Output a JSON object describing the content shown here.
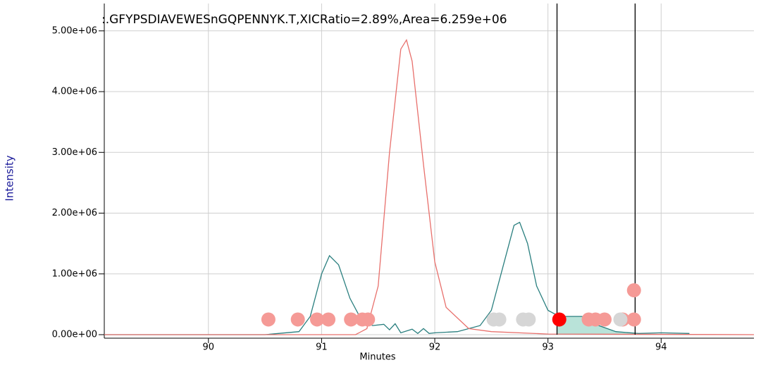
{
  "chart_data": {
    "type": "line",
    "title": ":.GFYPSDIAVEWESnGQPENNYK.T,XICRatio=2.89%,Area=6.259e+06",
    "x_label": "Minutes",
    "y_label": "Intensity",
    "xlim": [
      89.08,
      94.82
    ],
    "ylim": [
      0,
      5450000
    ],
    "xticks": [
      90,
      91,
      92,
      93,
      94
    ],
    "yticks": [
      {
        "value": 0,
        "label": "0.00e+00"
      },
      {
        "value": 1000000,
        "label": "1.00e+06"
      },
      {
        "value": 2000000,
        "label": "2.00e+06"
      },
      {
        "value": 3000000,
        "label": "3.00e+06"
      },
      {
        "value": 4000000,
        "label": "4.00e+06"
      },
      {
        "value": 5000000,
        "label": "5.00e+06"
      }
    ],
    "grid": true,
    "boundaries": [
      93.08,
      93.77
    ],
    "shade_color": "#b9e3d9",
    "series": [
      {
        "color": "#2a7f7f",
        "x": [
          89.08,
          90.5,
          90.8,
          90.9,
          91.0,
          91.07,
          91.15,
          91.25,
          91.35,
          91.45,
          91.55,
          91.6,
          91.65,
          91.7,
          91.8,
          91.85,
          91.9,
          91.95,
          92.0,
          92.2,
          92.4,
          92.5,
          92.6,
          92.7,
          92.75,
          92.82,
          92.9,
          93.0,
          93.1,
          93.3,
          93.45,
          93.6,
          93.8,
          94.0,
          94.25
        ],
        "values": [
          0,
          0,
          50000,
          300000,
          1000000,
          1300000,
          1150000,
          600000,
          250000,
          150000,
          170000,
          80000,
          180000,
          30000,
          90000,
          20000,
          100000,
          20000,
          30000,
          50000,
          150000,
          400000,
          1100000,
          1800000,
          1850000,
          1500000,
          800000,
          400000,
          300000,
          300000,
          150000,
          50000,
          20000,
          30000,
          20000
        ]
      },
      {
        "color": "#e8706c",
        "x": [
          89.08,
          91.3,
          91.4,
          91.5,
          91.6,
          91.7,
          91.75,
          91.8,
          91.9,
          92.0,
          92.1,
          92.3,
          92.5,
          93.0,
          94.82
        ],
        "values": [
          0,
          0,
          100000,
          800000,
          3000000,
          4700000,
          4850000,
          4500000,
          2800000,
          1200000,
          450000,
          100000,
          50000,
          10000,
          0
        ]
      }
    ],
    "points": [
      {
        "color": "#f59a96",
        "x": [
          90.53,
          90.79,
          90.96,
          91.06,
          91.26,
          91.36,
          91.41,
          93.36,
          93.42,
          93.5,
          93.66,
          93.76,
          93.76
        ],
        "values": [
          250000,
          250000,
          250000,
          250000,
          250000,
          250000,
          250000,
          250000,
          250000,
          250000,
          250000,
          250000,
          730000
        ]
      },
      {
        "color": "#d6d6d6",
        "x": [
          92.52,
          92.57,
          92.78,
          92.83,
          93.64
        ],
        "values": [
          250000,
          250000,
          250000,
          250000,
          250000
        ]
      },
      {
        "color": "#ff0000",
        "x": [
          93.1
        ],
        "values": [
          250000
        ]
      }
    ]
  }
}
